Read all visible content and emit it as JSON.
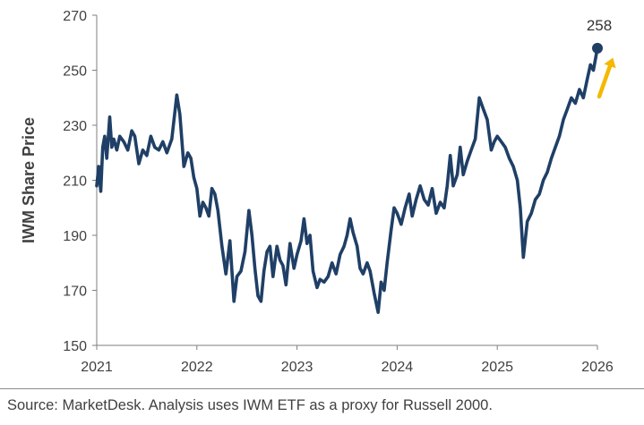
{
  "colors": {
    "line": "#1f3f66",
    "arrow": "#f5b800",
    "axis": "#7f7f7f",
    "text": "#404040"
  },
  "source": "Source: MarketDesk. Analysis uses IWM ETF as a proxy for Russell 2000.",
  "chart_data": {
    "type": "line",
    "title": "",
    "xlabel": "",
    "ylabel": "IWM Share Price",
    "xlim": [
      2021,
      2026
    ],
    "ylim": [
      150,
      270
    ],
    "x_ticks": [
      "2021",
      "2022",
      "2023",
      "2024",
      "2025",
      "2026"
    ],
    "y_ticks": [
      "150",
      "170",
      "190",
      "210",
      "230",
      "250",
      "270"
    ],
    "grid": false,
    "legend": "none",
    "end_point": {
      "x": 2026.0,
      "y": 258,
      "label": "258"
    },
    "annotation": "upward arrow (yellow) next to end point",
    "series": [
      {
        "points": [
          [
            2021.0,
            208
          ],
          [
            2021.02,
            215
          ],
          [
            2021.04,
            206
          ],
          [
            2021.06,
            222
          ],
          [
            2021.08,
            226
          ],
          [
            2021.1,
            218
          ],
          [
            2021.13,
            233
          ],
          [
            2021.15,
            222
          ],
          [
            2021.17,
            225
          ],
          [
            2021.2,
            221
          ],
          [
            2021.23,
            226
          ],
          [
            2021.27,
            224
          ],
          [
            2021.31,
            221
          ],
          [
            2021.35,
            228
          ],
          [
            2021.38,
            226
          ],
          [
            2021.42,
            216
          ],
          [
            2021.46,
            221
          ],
          [
            2021.5,
            219
          ],
          [
            2021.54,
            226
          ],
          [
            2021.58,
            222
          ],
          [
            2021.62,
            221
          ],
          [
            2021.66,
            224
          ],
          [
            2021.7,
            220
          ],
          [
            2021.75,
            225
          ],
          [
            2021.8,
            241
          ],
          [
            2021.83,
            234
          ],
          [
            2021.87,
            215
          ],
          [
            2021.91,
            220
          ],
          [
            2021.94,
            218
          ],
          [
            2021.97,
            211
          ],
          [
            2022.0,
            207
          ],
          [
            2022.03,
            197
          ],
          [
            2022.06,
            202
          ],
          [
            2022.09,
            200
          ],
          [
            2022.12,
            197
          ],
          [
            2022.15,
            207
          ],
          [
            2022.18,
            205
          ],
          [
            2022.21,
            199
          ],
          [
            2022.25,
            186
          ],
          [
            2022.29,
            176
          ],
          [
            2022.33,
            188
          ],
          [
            2022.37,
            166
          ],
          [
            2022.4,
            175
          ],
          [
            2022.44,
            177
          ],
          [
            2022.48,
            184
          ],
          [
            2022.52,
            199
          ],
          [
            2022.55,
            190
          ],
          [
            2022.58,
            178
          ],
          [
            2022.61,
            168
          ],
          [
            2022.64,
            166
          ],
          [
            2022.67,
            177
          ],
          [
            2022.7,
            184
          ],
          [
            2022.73,
            186
          ],
          [
            2022.76,
            175
          ],
          [
            2022.8,
            186
          ],
          [
            2022.83,
            181
          ],
          [
            2022.86,
            179
          ],
          [
            2022.89,
            172
          ],
          [
            2022.93,
            187
          ],
          [
            2022.97,
            178
          ],
          [
            2023.0,
            183
          ],
          [
            2023.04,
            188
          ],
          [
            2023.07,
            196
          ],
          [
            2023.1,
            187
          ],
          [
            2023.13,
            190
          ],
          [
            2023.16,
            177
          ],
          [
            2023.2,
            171
          ],
          [
            2023.23,
            174
          ],
          [
            2023.27,
            173
          ],
          [
            2023.31,
            175
          ],
          [
            2023.35,
            180
          ],
          [
            2023.39,
            176
          ],
          [
            2023.43,
            183
          ],
          [
            2023.47,
            186
          ],
          [
            2023.5,
            190
          ],
          [
            2023.53,
            196
          ],
          [
            2023.56,
            191
          ],
          [
            2023.6,
            186
          ],
          [
            2023.63,
            178
          ],
          [
            2023.66,
            176
          ],
          [
            2023.7,
            180
          ],
          [
            2023.73,
            177
          ],
          [
            2023.77,
            169
          ],
          [
            2023.81,
            162
          ],
          [
            2023.84,
            173
          ],
          [
            2023.87,
            170
          ],
          [
            2023.9,
            180
          ],
          [
            2023.94,
            192
          ],
          [
            2023.97,
            200
          ],
          [
            2024.0,
            198
          ],
          [
            2024.04,
            194
          ],
          [
            2024.08,
            200
          ],
          [
            2024.12,
            205
          ],
          [
            2024.15,
            197
          ],
          [
            2024.19,
            203
          ],
          [
            2024.23,
            208
          ],
          [
            2024.27,
            203
          ],
          [
            2024.31,
            201
          ],
          [
            2024.35,
            207
          ],
          [
            2024.39,
            198
          ],
          [
            2024.43,
            202
          ],
          [
            2024.47,
            200
          ],
          [
            2024.5,
            208
          ],
          [
            2024.53,
            219
          ],
          [
            2024.56,
            208
          ],
          [
            2024.6,
            212
          ],
          [
            2024.63,
            222
          ],
          [
            2024.66,
            212
          ],
          [
            2024.7,
            217
          ],
          [
            2024.74,
            221
          ],
          [
            2024.78,
            225
          ],
          [
            2024.82,
            240
          ],
          [
            2024.86,
            236
          ],
          [
            2024.9,
            232
          ],
          [
            2024.94,
            221
          ],
          [
            2024.97,
            224
          ],
          [
            2025.0,
            226
          ],
          [
            2025.04,
            224
          ],
          [
            2025.08,
            222
          ],
          [
            2025.12,
            218
          ],
          [
            2025.16,
            215
          ],
          [
            2025.2,
            210
          ],
          [
            2025.23,
            200
          ],
          [
            2025.26,
            182
          ],
          [
            2025.3,
            195
          ],
          [
            2025.34,
            198
          ],
          [
            2025.38,
            203
          ],
          [
            2025.42,
            205
          ],
          [
            2025.46,
            210
          ],
          [
            2025.5,
            213
          ],
          [
            2025.54,
            218
          ],
          [
            2025.58,
            222
          ],
          [
            2025.62,
            226
          ],
          [
            2025.66,
            232
          ],
          [
            2025.7,
            236
          ],
          [
            2025.74,
            240
          ],
          [
            2025.78,
            238
          ],
          [
            2025.82,
            243
          ],
          [
            2025.86,
            240
          ],
          [
            2025.9,
            247
          ],
          [
            2025.93,
            252
          ],
          [
            2025.96,
            250
          ],
          [
            2026.0,
            258
          ]
        ]
      }
    ]
  }
}
